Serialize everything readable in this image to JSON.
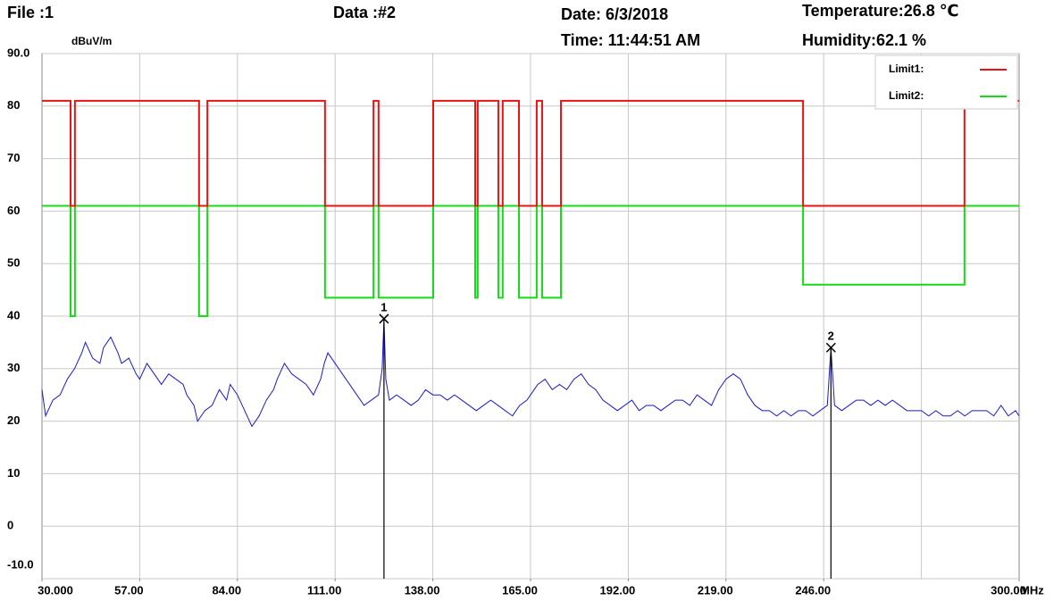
{
  "header": {
    "file": "File :1",
    "data": "Data :#2",
    "date": "Date: 6/3/2018",
    "time": "Time: 11:44:51 AM",
    "temperature": "Temperature:26.8 ℃",
    "humidity": "Humidity:62.1 %"
  },
  "chart_data": {
    "type": "line",
    "y_unit": "dBuV/m",
    "x_unit": "MHz",
    "xlim": [
      30,
      300
    ],
    "ylim": [
      -10,
      90
    ],
    "xticks": [
      {
        "value": 30,
        "label": "30.000"
      },
      {
        "value": 57,
        "label": "57.00"
      },
      {
        "value": 84,
        "label": "84.00"
      },
      {
        "value": 111,
        "label": "111.00"
      },
      {
        "value": 138,
        "label": "138.00"
      },
      {
        "value": 165,
        "label": "165.00"
      },
      {
        "value": 192,
        "label": "192.00"
      },
      {
        "value": 219,
        "label": "219.00"
      },
      {
        "value": 246,
        "label": "246.00"
      },
      {
        "value": 300,
        "label": "300.00"
      }
    ],
    "xgrid": [
      57,
      84,
      111,
      138,
      165,
      192,
      219,
      246,
      273
    ],
    "yticks": [
      {
        "value": 90,
        "label": "90.0"
      },
      80,
      70,
      60,
      50,
      40,
      30,
      20,
      10,
      0,
      {
        "value": -10,
        "label": "-10.0"
      }
    ],
    "grid": true,
    "legend": "top-right",
    "series": [
      {
        "color": "#1a1acc",
        "x": [
          30,
          31,
          33,
          35,
          37,
          39,
          41,
          42,
          44,
          46,
          47,
          49,
          51,
          52,
          54,
          56,
          57,
          59,
          61,
          63,
          65,
          67,
          69,
          70,
          72,
          73,
          75,
          77,
          79,
          81,
          82,
          84,
          86,
          88,
          90,
          92,
          94,
          95,
          97,
          99,
          101,
          103,
          105,
          107,
          108,
          109,
          111,
          113,
          115,
          117,
          119,
          121,
          123,
          124,
          124.5,
          125,
          126,
          128,
          130,
          132,
          134,
          136,
          138,
          140,
          142,
          144,
          146,
          148,
          150,
          152,
          154,
          156,
          158,
          160,
          162,
          164,
          166,
          167,
          169,
          171,
          173,
          175,
          177,
          179,
          181,
          183,
          185,
          187,
          189,
          191,
          193,
          195,
          197,
          199,
          201,
          203,
          205,
          207,
          209,
          211,
          213,
          215,
          217,
          219,
          221,
          223,
          225,
          227,
          229,
          231,
          233,
          235,
          237,
          239,
          241,
          243,
          245,
          247,
          248,
          249,
          251,
          253,
          255,
          257,
          259,
          261,
          263,
          265,
          267,
          269,
          271,
          273,
          275,
          277,
          279,
          281,
          283,
          285,
          287,
          289,
          291,
          293,
          295,
          297,
          299,
          300
        ],
        "values": [
          26,
          21,
          24,
          25,
          28,
          30,
          33,
          35,
          32,
          31,
          34,
          36,
          33,
          31,
          32,
          29,
          28,
          31,
          29,
          27,
          29,
          28,
          27,
          25,
          23,
          20,
          22,
          23,
          26,
          24,
          27,
          25,
          22,
          19,
          21,
          24,
          26,
          28,
          31,
          29,
          28,
          27,
          25,
          28,
          31,
          33,
          31,
          29,
          27,
          25,
          23,
          24,
          25,
          30,
          39.5,
          28,
          24,
          25,
          24,
          23,
          24,
          26,
          25,
          25,
          24,
          25,
          24,
          23,
          22,
          23,
          24,
          23,
          22,
          21,
          23,
          24,
          26,
          27,
          28,
          26,
          27,
          26,
          28,
          29,
          27,
          26,
          24,
          23,
          22,
          23,
          24,
          22,
          23,
          23,
          22,
          23,
          24,
          24,
          23,
          25,
          24,
          23,
          26,
          28,
          29,
          28,
          25,
          23,
          22,
          22,
          21,
          22,
          21,
          22,
          22,
          21,
          22,
          23,
          34,
          23,
          22,
          23,
          24,
          24,
          23,
          24,
          23,
          24,
          23,
          22,
          22,
          22,
          21,
          22,
          21,
          21,
          22,
          21,
          22,
          22,
          22,
          21,
          23,
          21,
          22,
          21
        ]
      },
      {
        "name": "Limit1:",
        "color": "#e81414",
        "x": [
          30,
          37.9,
          37.9,
          39.1,
          39.1,
          73.4,
          73.4,
          75.7,
          75.7,
          108.2,
          108.2,
          121.6,
          121.6,
          123,
          123,
          138.1,
          138.1,
          149.7,
          149.7,
          150.4,
          150.4,
          156.1,
          156.1,
          157.3,
          157.3,
          161.8,
          161.8,
          166.7,
          166.7,
          168.2,
          168.2,
          173.4,
          173.4,
          240.3,
          240.3,
          284.9,
          284.9,
          300
        ],
        "values": [
          81,
          81,
          61,
          61,
          81,
          81,
          61,
          61,
          81,
          81,
          61,
          61,
          81,
          81,
          61,
          61,
          81,
          81,
          61,
          61,
          81,
          81,
          61,
          61,
          81,
          81,
          61,
          61,
          81,
          81,
          61,
          61,
          81,
          81,
          61,
          61,
          81,
          81
        ]
      },
      {
        "name": "Limit2:",
        "color": "#14dc14",
        "x": [
          30,
          37.9,
          37.9,
          39.1,
          39.1,
          73.4,
          73.4,
          75.7,
          75.7,
          108.2,
          108.2,
          121.6,
          121.6,
          123,
          123,
          138.1,
          138.1,
          149.7,
          149.7,
          150.4,
          150.4,
          156.1,
          156.1,
          157.3,
          157.3,
          161.8,
          161.8,
          166.7,
          166.7,
          168.2,
          168.2,
          173.4,
          173.4,
          240.3,
          240.3,
          284.9,
          284.9,
          300
        ],
        "values": [
          61,
          61,
          40,
          40,
          61,
          61,
          40,
          40,
          61,
          61,
          43.5,
          43.5,
          61,
          61,
          43.5,
          43.5,
          61,
          61,
          43.5,
          43.5,
          61,
          61,
          43.5,
          43.5,
          61,
          61,
          43.5,
          43.5,
          61,
          61,
          43.5,
          43.5,
          61,
          61,
          46,
          46,
          61,
          61
        ]
      }
    ],
    "markers": [
      {
        "label": "1",
        "x": 124.5,
        "value": 39.5
      },
      {
        "label": "2",
        "x": 248,
        "value": 34
      }
    ]
  }
}
